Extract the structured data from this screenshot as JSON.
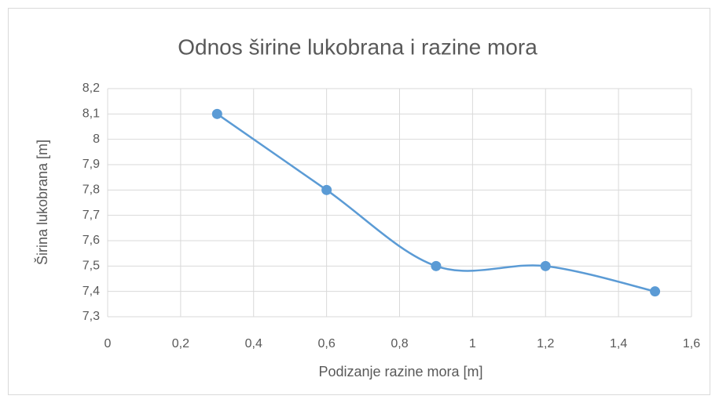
{
  "chart_data": {
    "type": "line",
    "title": "Odnos širine lukobrana i razine mora",
    "x_label": "Podizanje razine mora [m]",
    "y_label": "Širina lukobrana [m]",
    "x": [
      0.3,
      0.6,
      0.9,
      1.2,
      1.5
    ],
    "series": [
      {
        "color": "#5b9bd5",
        "values": [
          8.1,
          7.8,
          7.5,
          7.5,
          7.4
        ]
      }
    ],
    "smooth": true,
    "grid": true,
    "xlim": [
      0,
      1.6
    ],
    "xticks": [
      0,
      {
        "value": 0.2,
        "label": "0,2"
      },
      {
        "value": 0.4,
        "label": "0,4"
      },
      {
        "value": 0.6,
        "label": "0,6"
      },
      {
        "value": 0.8,
        "label": "0,8"
      },
      1,
      {
        "value": 1.2,
        "label": "1,2"
      },
      {
        "value": 1.4,
        "label": "1,4"
      },
      {
        "value": 1.6,
        "label": "1,6"
      }
    ],
    "ylim": [
      7.3,
      8.2
    ],
    "yticks": [
      {
        "value": 7.3,
        "label": "7,3"
      },
      {
        "value": 7.4,
        "label": "7,4"
      },
      {
        "value": 7.5,
        "label": "7,5"
      },
      {
        "value": 7.6,
        "label": "7,6"
      },
      {
        "value": 7.7,
        "label": "7,7"
      },
      {
        "value": 7.8,
        "label": "7,8"
      },
      {
        "value": 7.9,
        "label": "7,9"
      },
      8,
      {
        "value": 8.1,
        "label": "8,1"
      },
      {
        "value": 8.2,
        "label": "8,2"
      }
    ]
  }
}
